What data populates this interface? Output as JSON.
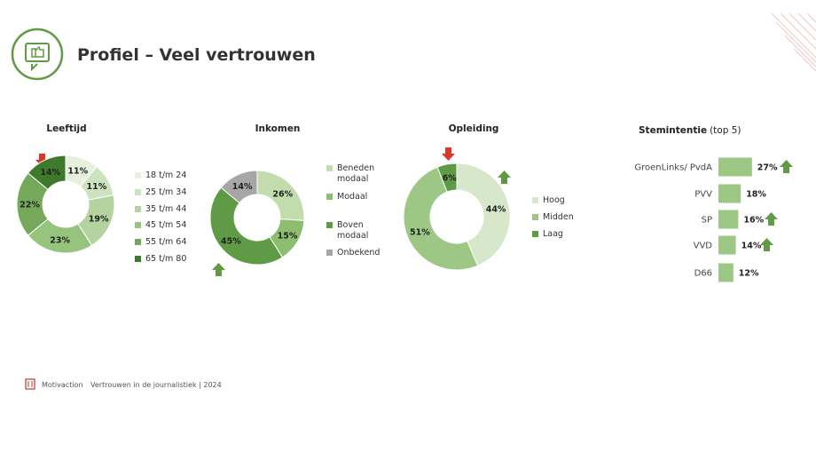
{
  "header": {
    "title": "Profiel – Veel vertrouwen"
  },
  "footer": {
    "source": "Motivaction",
    "text": "Vertrouwen in de journalistiek | 2024"
  },
  "chart_data": [
    {
      "type": "donut",
      "title": "Leeftijd",
      "categories": [
        "18 t/m 24",
        "25 t/m 34",
        "35 t/m 44",
        "45 t/m 54",
        "55 t/m 64",
        "65 t/m 80"
      ],
      "colors": [
        "#e6f0de",
        "#cde2bf",
        "#b3d49e",
        "#97c47d",
        "#76a85a",
        "#3e7a2c"
      ],
      "values": [
        11,
        11,
        19,
        23,
        22,
        14
      ],
      "value_labels": [
        "11%",
        "11%",
        "19%",
        "23%",
        "22%",
        "14%"
      ]
    },
    {
      "type": "donut",
      "title": "Inkomen",
      "categories": [
        "Beneden modaal",
        "Modaal",
        "Boven modaal",
        "Onbekend"
      ],
      "colors": [
        "#c2dcae",
        "#8dbd6f",
        "#5f9a45",
        "#a6a6a6"
      ],
      "values": [
        26,
        15,
        45,
        14
      ],
      "value_labels": [
        "26%",
        "15%",
        "45%",
        "14%"
      ]
    },
    {
      "type": "donut",
      "title": "Opleiding",
      "categories": [
        "Hoog",
        "Midden",
        "Laag"
      ],
      "colors": [
        "#d6e8c9",
        "#9cc785",
        "#5f9a45"
      ],
      "values": [
        44,
        51,
        6
      ],
      "value_labels": [
        "44%",
        "51%",
        "6%"
      ]
    },
    {
      "type": "bar",
      "orientation": "horizontal",
      "title": "Stemintentie",
      "subtitle": "(top 5)",
      "categories": [
        "GroenLinks/ PvdA",
        "PVV",
        "SP",
        "VVD",
        "D66"
      ],
      "color": "#9cc785",
      "values": [
        27,
        18,
        16,
        14,
        12
      ],
      "value_labels": [
        "27%",
        "18%",
        "16%",
        "14%",
        "12%"
      ]
    }
  ]
}
